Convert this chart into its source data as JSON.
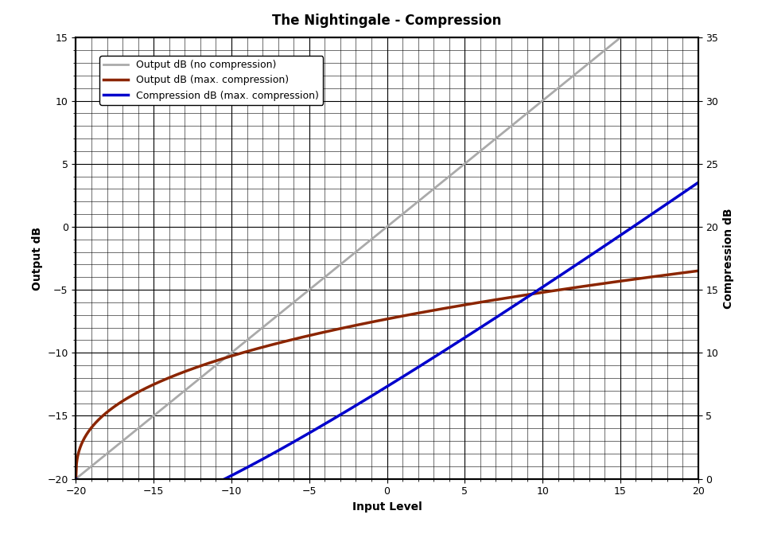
{
  "title": "The Nightingale - Compression",
  "xlabel": "Input Level",
  "ylabel_left": "Output dB",
  "ylabel_right": "Compression dB",
  "xlim": [
    -20,
    20
  ],
  "ylim_left": [
    -20,
    15
  ],
  "ylim_right": [
    0,
    35
  ],
  "x_ticks": [
    -20,
    -15,
    -10,
    -5,
    0,
    5,
    10,
    15,
    20
  ],
  "y_ticks_left": [
    -20,
    -15,
    -10,
    -5,
    0,
    5,
    10,
    15
  ],
  "y_ticks_right": [
    0,
    5,
    10,
    15,
    20,
    25,
    30,
    35
  ],
  "line_no_compress_color": "#aaaaaa",
  "line_max_compress_color": "#8B2500",
  "line_compression_color": "#0000CC",
  "legend_labels": [
    "Output dB (no compression)",
    "Output dB (max. compression)",
    "Compression dB (max. compression)"
  ],
  "background_color": "#ffffff",
  "grid_color": "#000000",
  "title_fontsize": 12,
  "axis_label_fontsize": 10,
  "tick_fontsize": 9,
  "legend_fontsize": 9
}
